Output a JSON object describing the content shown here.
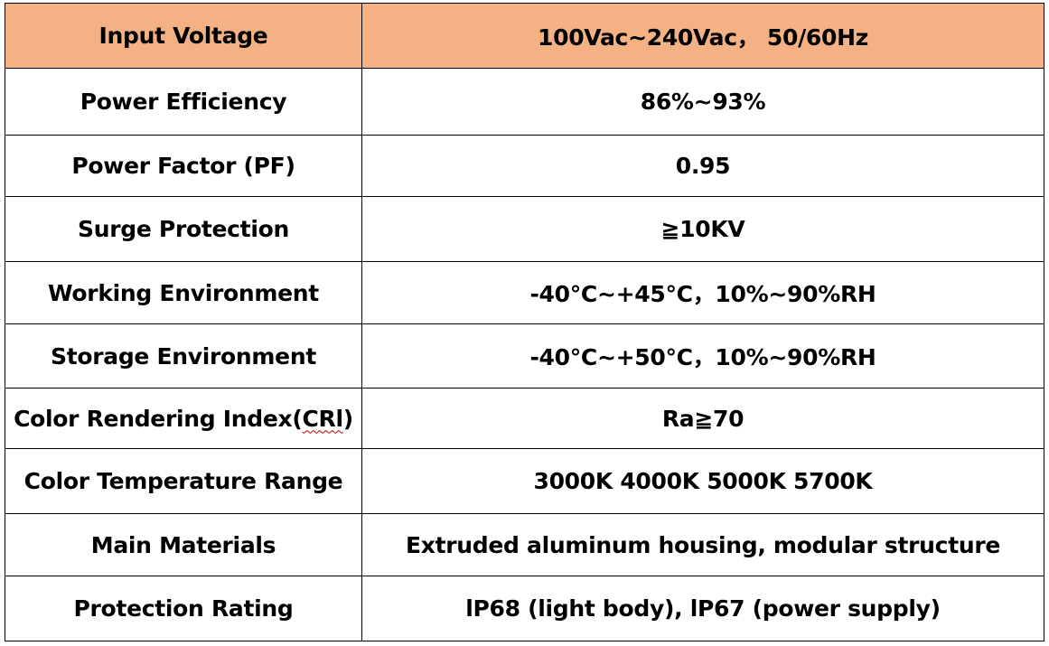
{
  "header": {
    "label": "Input Voltage",
    "value": "100Vac~240Vac， 50/60Hz",
    "background": "#f4b183"
  },
  "rows": [
    {
      "label": "Power Efficiency",
      "value": "86%~93%"
    },
    {
      "label": "Power Factor (PF)",
      "value": "0.95"
    },
    {
      "label": "Surge Protection",
      "value": "≧10KV"
    },
    {
      "label": "Working Environment",
      "value": "-40°C~+45°C，10%~90%RH"
    },
    {
      "label": "Storage Environment",
      "value": "-40°C~+50°C，10%~90%RH"
    },
    {
      "label_prefix": "Color Rendering Index(",
      "label_flagged": "CRl",
      "label_suffix": ")",
      "value": "Ra≧70"
    },
    {
      "label": "Color Temperature Range",
      "value": "3000K 4000K 5000K 5700K"
    },
    {
      "label": "Main Materials",
      "value": "Extruded aluminum housing, modular structure"
    },
    {
      "label": "Protection Rating",
      "value": "lP68 (light body), lP67 (power supply)"
    }
  ]
}
